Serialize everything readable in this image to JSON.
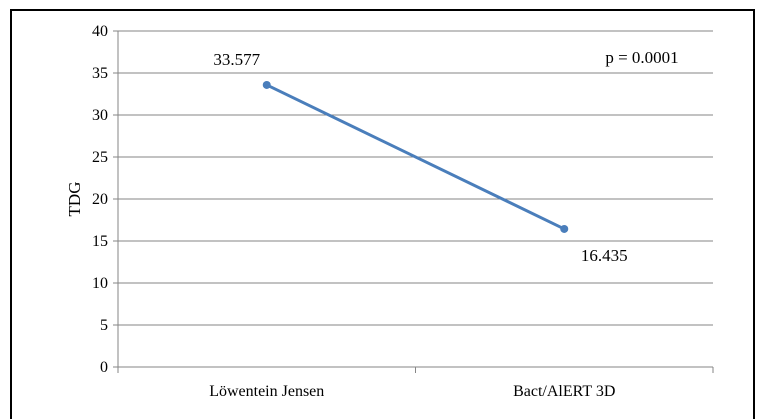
{
  "chart_data": {
    "type": "line",
    "categories": [
      "Löwentein Jensen",
      "Bact/AlERT 3D"
    ],
    "series": [
      {
        "values": [
          33.577,
          16.435
        ],
        "data_labels": [
          "33.577",
          "16.435"
        ],
        "color": "#4a7ebb"
      }
    ],
    "ylabel": "TDG",
    "xlabel": "",
    "ylim": [
      0,
      40
    ],
    "yticks": [
      0,
      5,
      10,
      15,
      20,
      25,
      30,
      35,
      40
    ],
    "grid": true,
    "annotation": "p = 0.0001",
    "legend": "none"
  }
}
